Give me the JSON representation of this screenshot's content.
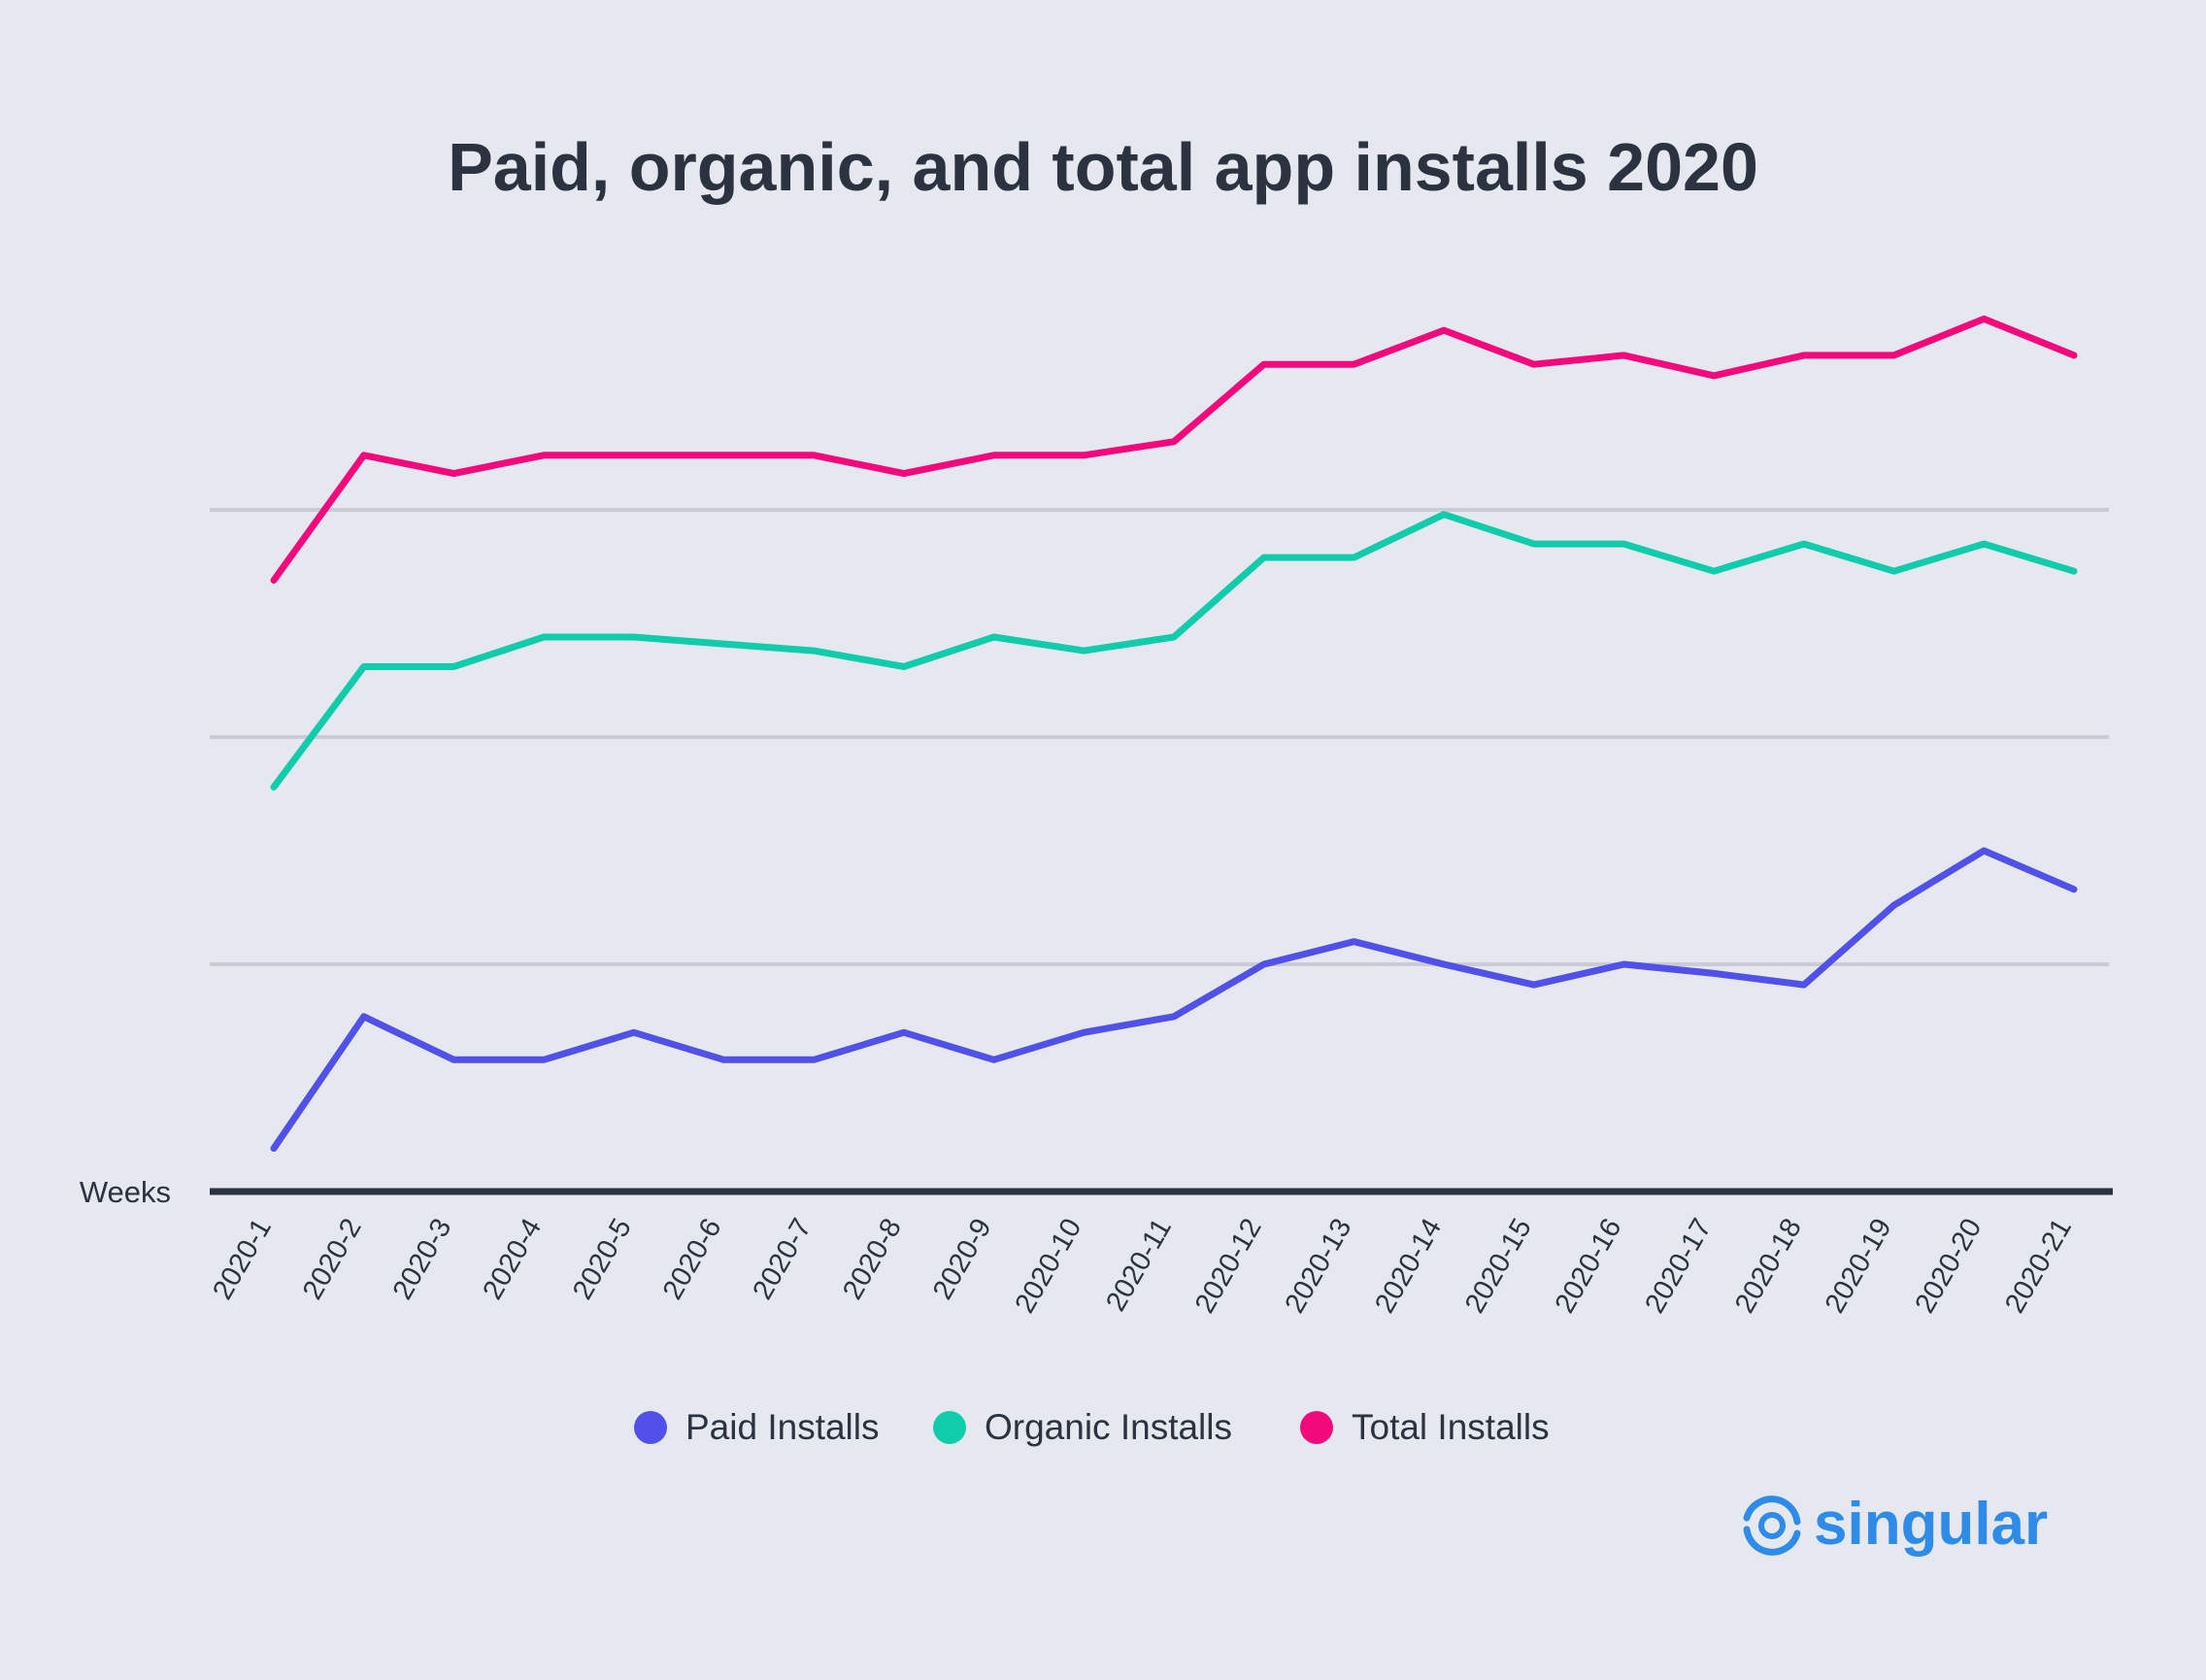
{
  "chart_data": {
    "type": "line",
    "title": "Paid, organic, and total app installs 2020",
    "xlabel": "Weeks",
    "ylabel": "",
    "categories": [
      "2020-1",
      "2020-2",
      "2020-3",
      "2020-4",
      "2020-5",
      "2020-6",
      "2020-7",
      "2020-8",
      "2020-9",
      "2020-10",
      "2020-11",
      "2020-12",
      "2020-13",
      "2020-14",
      "2020-15",
      "2020-16",
      "2020-17",
      "2020-18",
      "2020-19",
      "2020-20",
      "2020-21"
    ],
    "ylim": [
      0,
      4
    ],
    "y_gridlines": [
      1,
      2,
      3
    ],
    "y_tick_labels_shown": false,
    "grid": "horizontal",
    "legend_position": "bottom-center",
    "series": [
      {
        "name": "Paid Installs",
        "color": "#5150e8",
        "values": [
          0.19,
          0.77,
          0.58,
          0.58,
          0.7,
          0.58,
          0.58,
          0.7,
          0.58,
          0.7,
          0.77,
          1.0,
          1.1,
          1.0,
          0.91,
          1.0,
          0.96,
          0.91,
          1.26,
          1.5,
          1.33
        ]
      },
      {
        "name": "Organic Installs",
        "color": "#11ccaa",
        "values": [
          1.78,
          2.31,
          2.31,
          2.44,
          2.44,
          2.41,
          2.38,
          2.31,
          2.44,
          2.38,
          2.44,
          2.79,
          2.79,
          2.98,
          2.85,
          2.85,
          2.73,
          2.85,
          2.73,
          2.85,
          2.73
        ]
      },
      {
        "name": "Total Installs",
        "color": "#f20a7c",
        "values": [
          2.69,
          3.24,
          3.16,
          3.24,
          3.24,
          3.24,
          3.24,
          3.16,
          3.24,
          3.24,
          3.3,
          3.64,
          3.64,
          3.79,
          3.64,
          3.68,
          3.59,
          3.68,
          3.68,
          3.84,
          3.68
        ]
      }
    ]
  },
  "branding": {
    "logo_text": "singular",
    "logo_icon": "singular-swirl-icon",
    "logo_color": "#2e8be8"
  },
  "colors": {
    "background": "#e5e8ee",
    "text": "#2b3240",
    "grid": "#c9ccd6",
    "axis": "#2b3240"
  }
}
